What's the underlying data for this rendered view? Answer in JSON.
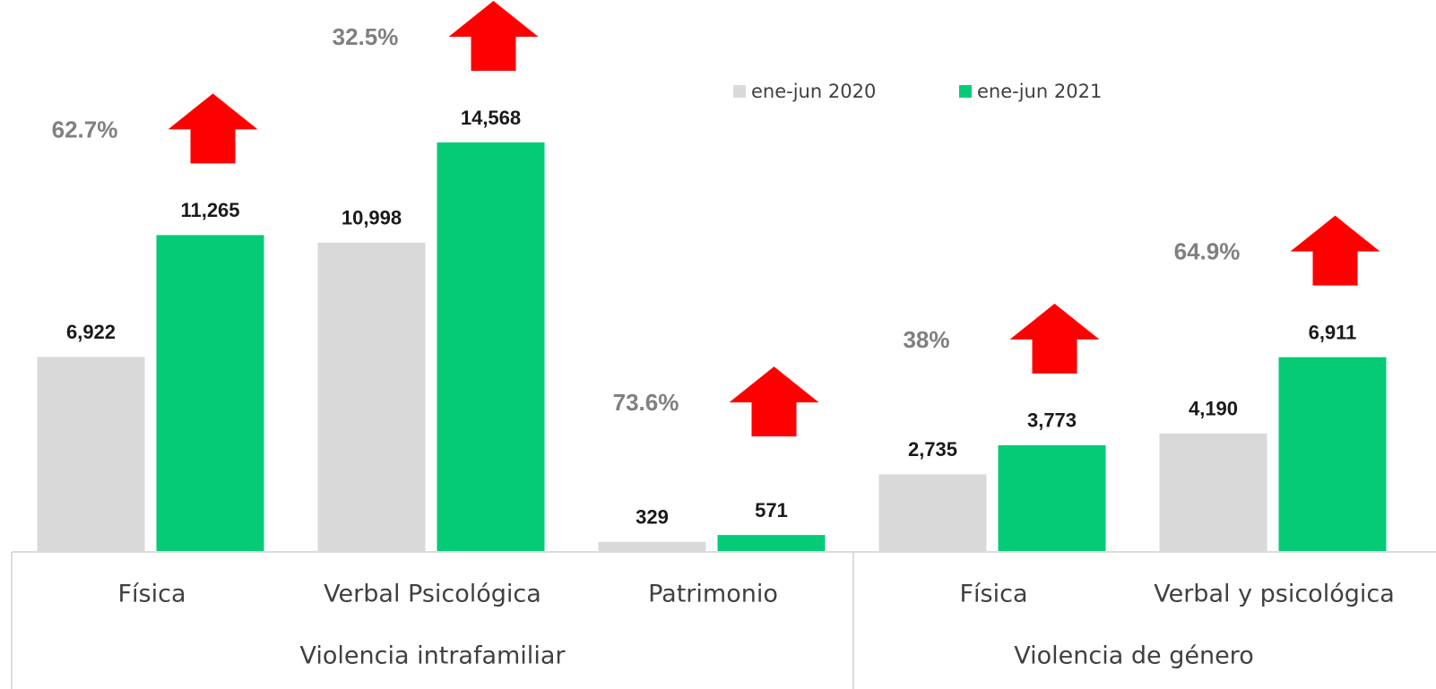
{
  "chart_data": {
    "type": "bar",
    "category_groups": [
      {
        "name": "Violencia intrafamiliar",
        "categories": [
          "Física",
          "Verbal Psicológica",
          "Patrimonio"
        ]
      },
      {
        "name": "Violencia de género",
        "categories": [
          "Física",
          "Verbal y psicológica"
        ]
      }
    ],
    "series": [
      {
        "name": "ene-jun 2020",
        "color": "#d9d9d9",
        "values": [
          6922,
          10998,
          329,
          2735,
          4190
        ],
        "value_labels": [
          "6,922",
          "10,998",
          "329",
          "2,735",
          "4,190"
        ]
      },
      {
        "name": "ene-jun 2021",
        "color": "#05cb77",
        "values": [
          11265,
          14568,
          571,
          3773,
          6911
        ],
        "value_labels": [
          "11,265",
          "14,568",
          "571",
          "3,773",
          "6,911"
        ]
      }
    ],
    "annotations": [
      "62.7%",
      "32.5%",
      "73.6%",
      "38%",
      "64.9%"
    ],
    "annotation_arrow_color": "#ff0000"
  }
}
